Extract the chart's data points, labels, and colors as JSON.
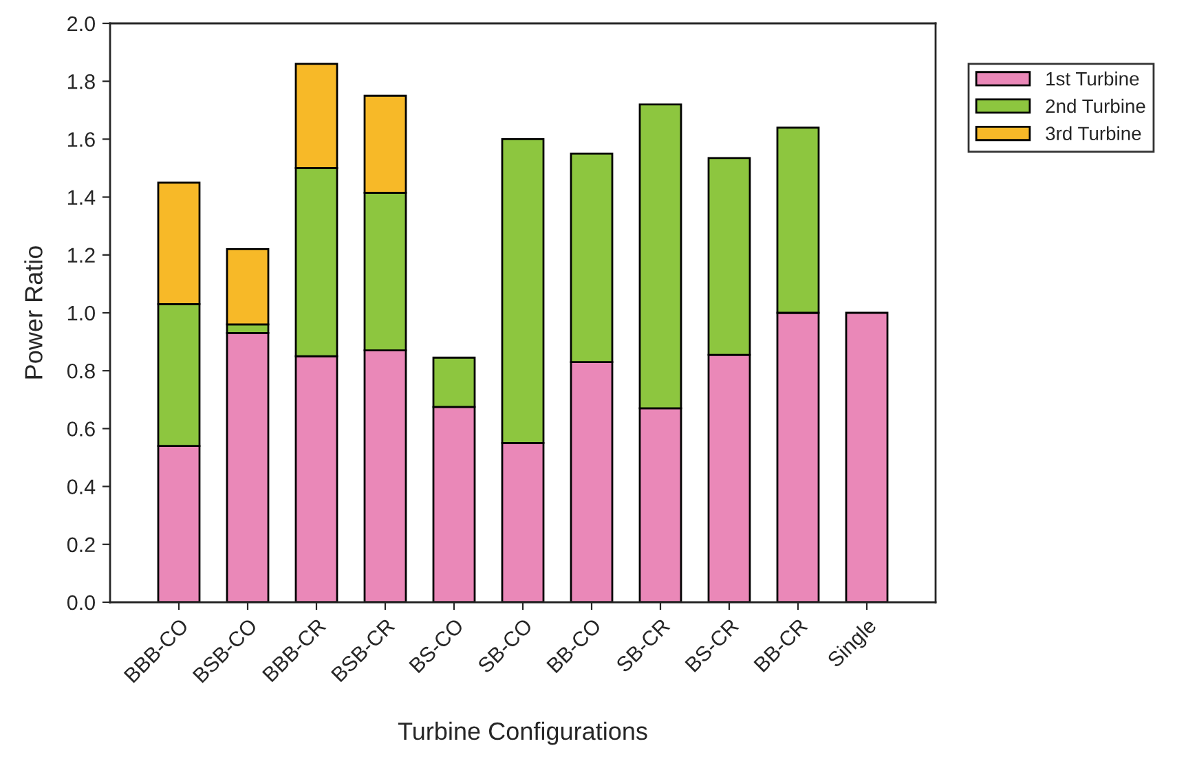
{
  "chart_data": {
    "type": "bar",
    "stacked": true,
    "xlabel": "Turbine Configurations",
    "ylabel": "Power Ratio",
    "categories": [
      "BBB-CO",
      "BSB-CO",
      "BBB-CR",
      "BSB-CR",
      "BS-CO",
      "SB-CO",
      "BB-CO",
      "SB-CR",
      "BS-CR",
      "BB-CR",
      "Single"
    ],
    "series": [
      {
        "name": "1st Turbine",
        "color": "#ea88b8",
        "values": [
          0.54,
          0.93,
          0.85,
          0.87,
          0.675,
          0.55,
          0.83,
          0.67,
          0.855,
          1.0,
          1.0
        ]
      },
      {
        "name": "2nd Turbine",
        "color": "#8dc63f",
        "values": [
          0.49,
          0.03,
          0.65,
          0.545,
          0.17,
          1.05,
          0.72,
          1.05,
          0.68,
          0.64,
          null
        ]
      },
      {
        "name": "3rd Turbine",
        "color": "#f7b928",
        "values": [
          0.42,
          0.26,
          0.36,
          0.335,
          null,
          null,
          null,
          null,
          null,
          null,
          null
        ]
      }
    ],
    "ylim": [
      0,
      2.0
    ],
    "yticks": [
      {
        "value": 0,
        "label": "0.0"
      },
      0.2,
      0.4,
      0.6,
      0.8,
      {
        "value": 1.0,
        "label": "1.0"
      },
      1.2,
      1.4,
      1.6,
      1.8,
      {
        "value": 2.0,
        "label": "2.0"
      }
    ],
    "grid": false,
    "legend": "top right"
  }
}
